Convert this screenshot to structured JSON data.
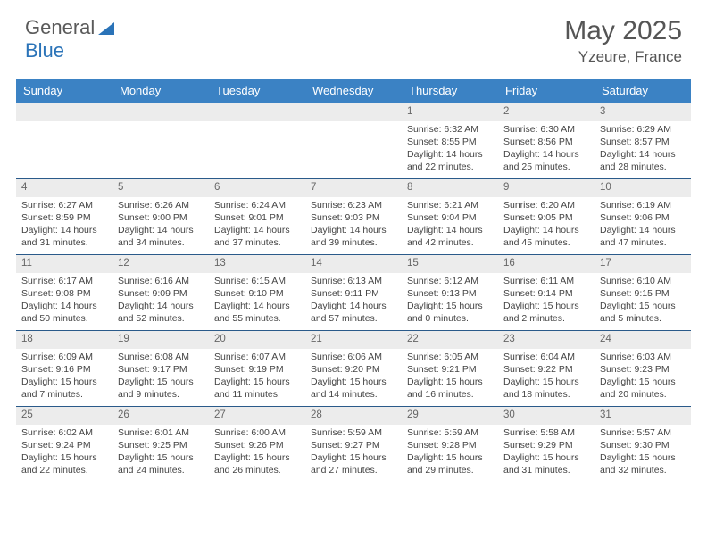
{
  "logo": {
    "textA": "General",
    "textB": "Blue"
  },
  "title": "May 2025",
  "location": "Yzeure, France",
  "colors": {
    "headerBg": "#3b82c4",
    "headerText": "#ffffff",
    "weekBorder": "#2a5a8a",
    "dayNumBg": "#ececec",
    "bodyText": "#444444"
  },
  "dayNames": [
    "Sunday",
    "Monday",
    "Tuesday",
    "Wednesday",
    "Thursday",
    "Friday",
    "Saturday"
  ],
  "weeks": [
    [
      {
        "num": "",
        "sunrise": "",
        "sunset": "",
        "daylight": ""
      },
      {
        "num": "",
        "sunrise": "",
        "sunset": "",
        "daylight": ""
      },
      {
        "num": "",
        "sunrise": "",
        "sunset": "",
        "daylight": ""
      },
      {
        "num": "",
        "sunrise": "",
        "sunset": "",
        "daylight": ""
      },
      {
        "num": "1",
        "sunrise": "Sunrise: 6:32 AM",
        "sunset": "Sunset: 8:55 PM",
        "daylight": "Daylight: 14 hours and 22 minutes."
      },
      {
        "num": "2",
        "sunrise": "Sunrise: 6:30 AM",
        "sunset": "Sunset: 8:56 PM",
        "daylight": "Daylight: 14 hours and 25 minutes."
      },
      {
        "num": "3",
        "sunrise": "Sunrise: 6:29 AM",
        "sunset": "Sunset: 8:57 PM",
        "daylight": "Daylight: 14 hours and 28 minutes."
      }
    ],
    [
      {
        "num": "4",
        "sunrise": "Sunrise: 6:27 AM",
        "sunset": "Sunset: 8:59 PM",
        "daylight": "Daylight: 14 hours and 31 minutes."
      },
      {
        "num": "5",
        "sunrise": "Sunrise: 6:26 AM",
        "sunset": "Sunset: 9:00 PM",
        "daylight": "Daylight: 14 hours and 34 minutes."
      },
      {
        "num": "6",
        "sunrise": "Sunrise: 6:24 AM",
        "sunset": "Sunset: 9:01 PM",
        "daylight": "Daylight: 14 hours and 37 minutes."
      },
      {
        "num": "7",
        "sunrise": "Sunrise: 6:23 AM",
        "sunset": "Sunset: 9:03 PM",
        "daylight": "Daylight: 14 hours and 39 minutes."
      },
      {
        "num": "8",
        "sunrise": "Sunrise: 6:21 AM",
        "sunset": "Sunset: 9:04 PM",
        "daylight": "Daylight: 14 hours and 42 minutes."
      },
      {
        "num": "9",
        "sunrise": "Sunrise: 6:20 AM",
        "sunset": "Sunset: 9:05 PM",
        "daylight": "Daylight: 14 hours and 45 minutes."
      },
      {
        "num": "10",
        "sunrise": "Sunrise: 6:19 AM",
        "sunset": "Sunset: 9:06 PM",
        "daylight": "Daylight: 14 hours and 47 minutes."
      }
    ],
    [
      {
        "num": "11",
        "sunrise": "Sunrise: 6:17 AM",
        "sunset": "Sunset: 9:08 PM",
        "daylight": "Daylight: 14 hours and 50 minutes."
      },
      {
        "num": "12",
        "sunrise": "Sunrise: 6:16 AM",
        "sunset": "Sunset: 9:09 PM",
        "daylight": "Daylight: 14 hours and 52 minutes."
      },
      {
        "num": "13",
        "sunrise": "Sunrise: 6:15 AM",
        "sunset": "Sunset: 9:10 PM",
        "daylight": "Daylight: 14 hours and 55 minutes."
      },
      {
        "num": "14",
        "sunrise": "Sunrise: 6:13 AM",
        "sunset": "Sunset: 9:11 PM",
        "daylight": "Daylight: 14 hours and 57 minutes."
      },
      {
        "num": "15",
        "sunrise": "Sunrise: 6:12 AM",
        "sunset": "Sunset: 9:13 PM",
        "daylight": "Daylight: 15 hours and 0 minutes."
      },
      {
        "num": "16",
        "sunrise": "Sunrise: 6:11 AM",
        "sunset": "Sunset: 9:14 PM",
        "daylight": "Daylight: 15 hours and 2 minutes."
      },
      {
        "num": "17",
        "sunrise": "Sunrise: 6:10 AM",
        "sunset": "Sunset: 9:15 PM",
        "daylight": "Daylight: 15 hours and 5 minutes."
      }
    ],
    [
      {
        "num": "18",
        "sunrise": "Sunrise: 6:09 AM",
        "sunset": "Sunset: 9:16 PM",
        "daylight": "Daylight: 15 hours and 7 minutes."
      },
      {
        "num": "19",
        "sunrise": "Sunrise: 6:08 AM",
        "sunset": "Sunset: 9:17 PM",
        "daylight": "Daylight: 15 hours and 9 minutes."
      },
      {
        "num": "20",
        "sunrise": "Sunrise: 6:07 AM",
        "sunset": "Sunset: 9:19 PM",
        "daylight": "Daylight: 15 hours and 11 minutes."
      },
      {
        "num": "21",
        "sunrise": "Sunrise: 6:06 AM",
        "sunset": "Sunset: 9:20 PM",
        "daylight": "Daylight: 15 hours and 14 minutes."
      },
      {
        "num": "22",
        "sunrise": "Sunrise: 6:05 AM",
        "sunset": "Sunset: 9:21 PM",
        "daylight": "Daylight: 15 hours and 16 minutes."
      },
      {
        "num": "23",
        "sunrise": "Sunrise: 6:04 AM",
        "sunset": "Sunset: 9:22 PM",
        "daylight": "Daylight: 15 hours and 18 minutes."
      },
      {
        "num": "24",
        "sunrise": "Sunrise: 6:03 AM",
        "sunset": "Sunset: 9:23 PM",
        "daylight": "Daylight: 15 hours and 20 minutes."
      }
    ],
    [
      {
        "num": "25",
        "sunrise": "Sunrise: 6:02 AM",
        "sunset": "Sunset: 9:24 PM",
        "daylight": "Daylight: 15 hours and 22 minutes."
      },
      {
        "num": "26",
        "sunrise": "Sunrise: 6:01 AM",
        "sunset": "Sunset: 9:25 PM",
        "daylight": "Daylight: 15 hours and 24 minutes."
      },
      {
        "num": "27",
        "sunrise": "Sunrise: 6:00 AM",
        "sunset": "Sunset: 9:26 PM",
        "daylight": "Daylight: 15 hours and 26 minutes."
      },
      {
        "num": "28",
        "sunrise": "Sunrise: 5:59 AM",
        "sunset": "Sunset: 9:27 PM",
        "daylight": "Daylight: 15 hours and 27 minutes."
      },
      {
        "num": "29",
        "sunrise": "Sunrise: 5:59 AM",
        "sunset": "Sunset: 9:28 PM",
        "daylight": "Daylight: 15 hours and 29 minutes."
      },
      {
        "num": "30",
        "sunrise": "Sunrise: 5:58 AM",
        "sunset": "Sunset: 9:29 PM",
        "daylight": "Daylight: 15 hours and 31 minutes."
      },
      {
        "num": "31",
        "sunrise": "Sunrise: 5:57 AM",
        "sunset": "Sunset: 9:30 PM",
        "daylight": "Daylight: 15 hours and 32 minutes."
      }
    ]
  ]
}
